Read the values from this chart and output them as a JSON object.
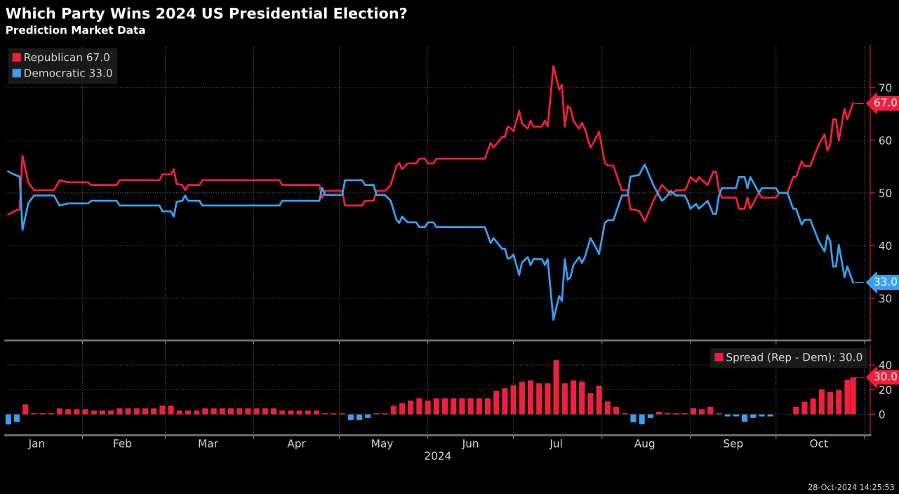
{
  "chart_data": [
    {
      "type": "line",
      "title": "Which Party Wins 2024 US Presidential Election?",
      "subtitle": "Prediction Market Data",
      "x": [
        "2024-01-06",
        "2024-01-08",
        "2024-01-10",
        "2024-01-11",
        "2024-01-13",
        "2024-01-15",
        "2024-01-22",
        "2024-01-24",
        "2024-01-27",
        "2024-02-03",
        "2024-02-04",
        "2024-02-13",
        "2024-02-14",
        "2024-02-28",
        "2024-02-29",
        "2024-03-03",
        "2024-03-04",
        "2024-03-05",
        "2024-03-07",
        "2024-03-08",
        "2024-03-09",
        "2024-03-13",
        "2024-03-14",
        "2024-04-10",
        "2024-04-11",
        "2024-04-24",
        "2024-04-25",
        "2024-04-26",
        "2024-05-02",
        "2024-05-03",
        "2024-05-09",
        "2024-05-10",
        "2024-05-13",
        "2024-05-14",
        "2024-05-17",
        "2024-05-19",
        "2024-05-21",
        "2024-05-22",
        "2024-05-23",
        "2024-05-25",
        "2024-05-28",
        "2024-05-29",
        "2024-05-31",
        "2024-06-01",
        "2024-06-03",
        "2024-06-04",
        "2024-06-21",
        "2024-06-23",
        "2024-06-24",
        "2024-06-27",
        "2024-06-28",
        "2024-06-29",
        "2024-06-30",
        "2024-07-01",
        "2024-07-03",
        "2024-07-04",
        "2024-07-06",
        "2024-07-07",
        "2024-07-08",
        "2024-07-11",
        "2024-07-12",
        "2024-07-13",
        "2024-07-15",
        "2024-07-17",
        "2024-07-18",
        "2024-07-19",
        "2024-07-20",
        "2024-07-21",
        "2024-07-22",
        "2024-07-24",
        "2024-07-25",
        "2024-07-26",
        "2024-07-28",
        "2024-07-29",
        "2024-07-31",
        "2024-08-02",
        "2024-08-03",
        "2024-08-05",
        "2024-08-08",
        "2024-08-10",
        "2024-08-11",
        "2024-08-14",
        "2024-08-16",
        "2024-08-19",
        "2024-08-20",
        "2024-08-22",
        "2024-08-24",
        "2024-08-25",
        "2024-08-27",
        "2024-08-30",
        "2024-08-31",
        "2024-09-01",
        "2024-09-03",
        "2024-09-04",
        "2024-09-07",
        "2024-09-09",
        "2024-09-10",
        "2024-09-11",
        "2024-09-12",
        "2024-09-17",
        "2024-09-18",
        "2024-09-20",
        "2024-09-21",
        "2024-09-22",
        "2024-09-25",
        "2024-09-26",
        "2024-10-01",
        "2024-10-02",
        "2024-10-05",
        "2024-10-07",
        "2024-10-08",
        "2024-10-10",
        "2024-10-11",
        "2024-10-13",
        "2024-10-16",
        "2024-10-18",
        "2024-10-19",
        "2024-10-20",
        "2024-10-21",
        "2024-10-22",
        "2024-10-23",
        "2024-10-25",
        "2024-10-26",
        "2024-10-28"
      ],
      "series": [
        {
          "name": "Republican 67.0",
          "color": "#f0203c",
          "values": [
            45.9,
            46.5,
            46.9,
            57.0,
            52.0,
            50.5,
            50.5,
            52.4,
            52.0,
            52.0,
            51.5,
            51.5,
            52.4,
            52.4,
            53.5,
            53.5,
            54.5,
            51.7,
            51.5,
            50.5,
            51.5,
            51.5,
            52.4,
            52.4,
            51.5,
            51.5,
            49.0,
            50.4,
            50.4,
            47.6,
            47.6,
            48.5,
            48.5,
            50.4,
            50.4,
            51.5,
            55.1,
            55.7,
            54.5,
            55.6,
            55.6,
            56.5,
            56.5,
            55.6,
            55.6,
            56.5,
            56.5,
            59.5,
            58.6,
            60.6,
            60.6,
            62.6,
            62.3,
            61.7,
            65.6,
            63.2,
            62.2,
            63.7,
            62.6,
            62.6,
            63.7,
            62.6,
            74.1,
            69.6,
            70.5,
            62.6,
            66.5,
            66.0,
            63.7,
            62.2,
            63.3,
            62.2,
            58.6,
            59.5,
            61.6,
            55.7,
            55.2,
            55.2,
            50.5,
            50.5,
            46.9,
            46.6,
            44.6,
            48.5,
            49.5,
            51.5,
            50.5,
            49.6,
            50.5,
            50.5,
            51.5,
            53.0,
            52.1,
            53.0,
            51.5,
            54.0,
            54.0,
            50.5,
            49.1,
            49.1,
            47.0,
            47.0,
            49.1,
            47.0,
            50.0,
            49.1,
            49.1,
            50.0,
            50.0,
            53.0,
            53.0,
            56.0,
            55.1,
            55.1,
            59.2,
            61.1,
            58.1,
            59.2,
            64.0,
            64.0,
            59.9,
            66.0,
            64.0,
            67.0
          ]
        },
        {
          "name": "Democratic 33.0",
          "color": "#3a9ff0",
          "values": [
            54.1,
            53.5,
            53.1,
            43.0,
            48.0,
            49.5,
            49.5,
            47.6,
            48.0,
            48.0,
            48.5,
            48.5,
            47.6,
            47.6,
            46.5,
            46.5,
            45.5,
            48.3,
            48.5,
            49.5,
            48.5,
            48.5,
            47.6,
            47.6,
            48.5,
            48.5,
            51.0,
            49.6,
            49.6,
            52.4,
            52.4,
            51.5,
            51.5,
            49.6,
            49.6,
            48.5,
            44.9,
            44.3,
            45.5,
            44.4,
            44.4,
            43.5,
            43.5,
            44.4,
            44.4,
            43.5,
            43.5,
            40.5,
            41.4,
            39.4,
            39.4,
            37.5,
            37.7,
            38.3,
            34.4,
            36.8,
            37.8,
            36.3,
            37.4,
            37.4,
            36.3,
            37.4,
            25.9,
            30.4,
            29.5,
            37.4,
            33.5,
            34.0,
            36.3,
            37.8,
            36.7,
            37.8,
            41.4,
            40.5,
            38.4,
            44.3,
            44.8,
            44.8,
            49.5,
            49.5,
            53.1,
            53.4,
            55.4,
            51.5,
            50.5,
            48.5,
            49.5,
            50.4,
            49.5,
            49.5,
            48.5,
            47.0,
            47.9,
            47.0,
            48.5,
            46.0,
            46.0,
            49.5,
            50.9,
            50.9,
            53.0,
            53.0,
            50.9,
            53.0,
            50.0,
            50.9,
            50.9,
            50.0,
            50.0,
            47.0,
            47.0,
            44.0,
            44.9,
            44.9,
            40.8,
            38.9,
            41.9,
            40.8,
            36.0,
            36.0,
            40.1,
            34.0,
            36.0,
            33.0
          ]
        }
      ],
      "xlim": [
        "2024-01-05",
        "2024-11-03"
      ],
      "xticks": [
        {
          "value": "2024-02-01",
          "label": null
        },
        {
          "value": "2024-03-01",
          "label": null
        },
        {
          "value": "2024-04-01",
          "label": null
        },
        {
          "value": "2024-05-01",
          "label": null
        },
        {
          "value": "2024-06-01",
          "label": null
        },
        {
          "value": "2024-07-01",
          "label": null
        },
        {
          "value": "2024-08-01",
          "label": null
        },
        {
          "value": "2024-09-01",
          "label": null
        },
        {
          "value": "2024-10-01",
          "label": null
        },
        {
          "value": "2024-11-01",
          "label": null
        }
      ],
      "ylim": [
        22,
        78
      ],
      "yticks": [
        30,
        40,
        50,
        60,
        70
      ],
      "tick_labels": "y",
      "grid": true,
      "legend": "top left",
      "annotations": [
        {
          "text": "67.0",
          "x": "2024-10-28",
          "y": 67
        },
        {
          "text": "33.0",
          "x": "2024-10-28",
          "y": 33
        }
      ]
    },
    {
      "type": "bar",
      "xlabel": "2024",
      "x": [
        "2024-01-06",
        "2024-01-09",
        "2024-01-12",
        "2024-01-15",
        "2024-01-18",
        "2024-01-21",
        "2024-01-24",
        "2024-01-27",
        "2024-01-30",
        "2024-02-02",
        "2024-02-05",
        "2024-02-08",
        "2024-02-11",
        "2024-02-14",
        "2024-02-17",
        "2024-02-20",
        "2024-02-23",
        "2024-02-26",
        "2024-02-29",
        "2024-03-03",
        "2024-03-06",
        "2024-03-09",
        "2024-03-12",
        "2024-03-15",
        "2024-03-18",
        "2024-03-21",
        "2024-03-24",
        "2024-03-27",
        "2024-03-30",
        "2024-04-02",
        "2024-04-05",
        "2024-04-08",
        "2024-04-11",
        "2024-04-14",
        "2024-04-17",
        "2024-04-20",
        "2024-04-23",
        "2024-04-26",
        "2024-04-29",
        "2024-05-02",
        "2024-05-05",
        "2024-05-08",
        "2024-05-11",
        "2024-05-14",
        "2024-05-17",
        "2024-05-20",
        "2024-05-23",
        "2024-05-26",
        "2024-05-29",
        "2024-06-01",
        "2024-06-04",
        "2024-06-07",
        "2024-06-10",
        "2024-06-13",
        "2024-06-16",
        "2024-06-19",
        "2024-06-22",
        "2024-06-25",
        "2024-06-28",
        "2024-07-01",
        "2024-07-04",
        "2024-07-07",
        "2024-07-10",
        "2024-07-13",
        "2024-07-16",
        "2024-07-19",
        "2024-07-22",
        "2024-07-25",
        "2024-07-28",
        "2024-07-31",
        "2024-08-03",
        "2024-08-06",
        "2024-08-09",
        "2024-08-12",
        "2024-08-15",
        "2024-08-18",
        "2024-08-21",
        "2024-08-24",
        "2024-08-27",
        "2024-08-30",
        "2024-09-02",
        "2024-09-05",
        "2024-09-08",
        "2024-09-11",
        "2024-09-14",
        "2024-09-17",
        "2024-09-20",
        "2024-09-23",
        "2024-09-26",
        "2024-09-29",
        "2024-10-02",
        "2024-10-05",
        "2024-10-08",
        "2024-10-11",
        "2024-10-14",
        "2024-10-17",
        "2024-10-20",
        "2024-10-23",
        "2024-10-26",
        "2024-10-28"
      ],
      "series": [
        {
          "name": "Spread (Rep - Dem): 30.0",
          "color": "#f0203c",
          "values": [
            -8.2,
            -6.2,
            8,
            1,
            1,
            1,
            4.8,
            4,
            4,
            4,
            3,
            3,
            3,
            4.8,
            4.8,
            4.8,
            4.8,
            4.8,
            7,
            7,
            3,
            3,
            3,
            4.8,
            4.8,
            4.8,
            4.8,
            4.8,
            4.8,
            4.8,
            4.8,
            4.8,
            3,
            3,
            3,
            3,
            3,
            0.8,
            0.8,
            0.8,
            -4.8,
            -4.8,
            -3,
            0.8,
            0.8,
            7,
            9,
            11.2,
            13,
            11.2,
            13,
            13,
            13,
            13,
            13,
            13,
            13,
            19,
            21.2,
            23.4,
            26.4,
            27.4,
            25.2,
            25.2,
            44,
            25.2,
            27.4,
            26.6,
            17.2,
            23.2,
            10.4,
            6,
            1,
            -6.5,
            -8,
            -3,
            2,
            1,
            1,
            1,
            5,
            4,
            6,
            1,
            -1.8,
            -1.8,
            -6,
            -3,
            -1.8,
            -1.8,
            0,
            0,
            6,
            10.2,
            12.9,
            20.3,
            18,
            19.8,
            28,
            30
          ],
          "colors": [
            "#3a9ff0",
            "#3a9ff0",
            "#f0203c",
            "#f0203c",
            "#f0203c",
            "#f0203c",
            "#f0203c",
            "#f0203c",
            "#f0203c",
            "#f0203c",
            "#f0203c",
            "#f0203c",
            "#f0203c",
            "#f0203c",
            "#f0203c",
            "#f0203c",
            "#f0203c",
            "#f0203c",
            "#f0203c",
            "#f0203c",
            "#f0203c",
            "#f0203c",
            "#f0203c",
            "#f0203c",
            "#f0203c",
            "#f0203c",
            "#f0203c",
            "#f0203c",
            "#f0203c",
            "#f0203c",
            "#f0203c",
            "#f0203c",
            "#f0203c",
            "#f0203c",
            "#f0203c",
            "#f0203c",
            "#f0203c",
            "#f0203c",
            "#f0203c",
            "#f0203c",
            "#3a9ff0",
            "#3a9ff0",
            "#3a9ff0",
            "#f0203c",
            "#f0203c",
            "#f0203c",
            "#f0203c",
            "#f0203c",
            "#f0203c",
            "#f0203c",
            "#f0203c",
            "#f0203c",
            "#f0203c",
            "#f0203c",
            "#f0203c",
            "#f0203c",
            "#f0203c",
            "#f0203c",
            "#f0203c",
            "#f0203c",
            "#f0203c",
            "#f0203c",
            "#f0203c",
            "#f0203c",
            "#f0203c",
            "#f0203c",
            "#f0203c",
            "#f0203c",
            "#f0203c",
            "#f0203c",
            "#f0203c",
            "#f0203c",
            "#f0203c",
            "#3a9ff0",
            "#3a9ff0",
            "#3a9ff0",
            "#f0203c",
            "#f0203c",
            "#f0203c",
            "#f0203c",
            "#f0203c",
            "#f0203c",
            "#f0203c",
            "#f0203c",
            "#3a9ff0",
            "#3a9ff0",
            "#3a9ff0",
            "#3a9ff0",
            "#3a9ff0",
            "#3a9ff0",
            "#f0203c",
            "#f0203c",
            "#f0203c",
            "#f0203c",
            "#f0203c",
            "#f0203c",
            "#f0203c",
            "#f0203c",
            "#f0203c",
            "#f0203c"
          ]
        }
      ],
      "xlim": [
        "2024-01-05",
        "2024-11-03"
      ],
      "xticks": [
        {
          "value": "2024-02-01",
          "label": null
        },
        {
          "value": "2024-03-01",
          "label": null
        },
        {
          "value": "2024-04-01",
          "label": null
        },
        {
          "value": "2024-05-01",
          "label": null
        },
        {
          "value": "2024-06-01",
          "label": null
        },
        {
          "value": "2024-07-01",
          "label": null
        },
        {
          "value": "2024-08-01",
          "label": null
        },
        {
          "value": "2024-09-01",
          "label": null
        },
        {
          "value": "2024-10-01",
          "label": null
        },
        {
          "value": "2024-11-01",
          "label": null
        },
        {
          "value": "2024-01-16",
          "label": "Jan"
        },
        {
          "value": "2024-02-15",
          "label": "Feb"
        },
        {
          "value": "2024-03-16",
          "label": "Mar"
        },
        {
          "value": "2024-04-16",
          "label": "Apr"
        },
        {
          "value": "2024-05-16",
          "label": "May"
        },
        {
          "value": "2024-06-16",
          "label": "Jun"
        },
        {
          "value": "2024-07-16",
          "label": "Jul"
        },
        {
          "value": "2024-08-16",
          "label": "Aug"
        },
        {
          "value": "2024-09-16",
          "label": "Sep"
        },
        {
          "value": "2024-10-16",
          "label": "Oct"
        }
      ],
      "ylim": [
        -17,
        56
      ],
      "yticks": [
        0,
        20,
        40
      ],
      "grid": true,
      "legend": "top right",
      "annotations": [
        {
          "text": "30.0",
          "x": "2024-10-28",
          "y": 30
        },
        "28-Oct-2024 14:25:53"
      ]
    }
  ]
}
